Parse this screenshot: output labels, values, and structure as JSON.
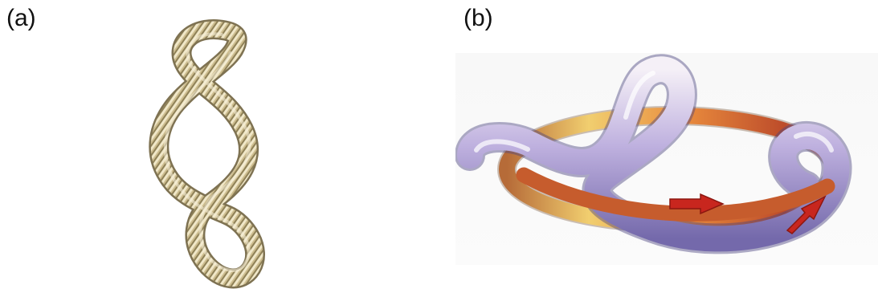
{
  "panels": {
    "a": {
      "label": "(a)"
    },
    "b": {
      "label": "(b)"
    }
  },
  "colors": {
    "rope_main": "#c9b98a",
    "rope_highlight": "#f3ecd3",
    "rope_shadow": "#8d7f55",
    "tube_light": "#f2ecf6",
    "tube_mid": "#b7a9dc",
    "tube_dark": "#6f63a8",
    "ring_orange": "#e9883a",
    "ring_yellow": "#f2cf6a",
    "ring_red": "#c44a2a",
    "arrow_red": "#c8261e"
  }
}
